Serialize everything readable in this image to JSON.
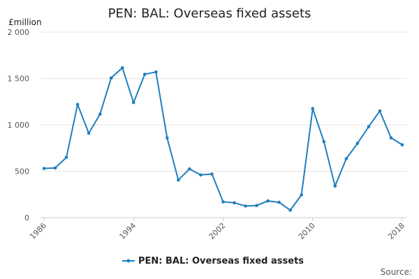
{
  "chart_data": {
    "type": "line",
    "title": "PEN: BAL: Overseas fixed assets",
    "ylabel": "£million",
    "ylim": [
      0,
      2000
    ],
    "yticks": [
      0,
      500,
      1000,
      1500,
      2000
    ],
    "ytick_labels": [
      "0",
      "500",
      "1 000",
      "1 500",
      "2 000"
    ],
    "xlim": [
      1986,
      2018
    ],
    "xticks": [
      1986,
      1994,
      2002,
      2010,
      2018
    ],
    "xtick_labels": [
      "1986",
      "1994",
      "2002",
      "2010",
      "2018"
    ],
    "grid": "horizontal",
    "legend": "bottom-center",
    "color": "#1f7fc0",
    "series": [
      {
        "name": "PEN: BAL: Overseas fixed assets",
        "x": [
          1986,
          1987,
          1988,
          1989,
          1990,
          1991,
          1992,
          1993,
          1994,
          1995,
          1996,
          1997,
          1998,
          1999,
          2000,
          2001,
          2002,
          2003,
          2004,
          2005,
          2006,
          2007,
          2008,
          2009,
          2010,
          2011,
          2012,
          2013,
          2014,
          2015,
          2016,
          2017,
          2018
        ],
        "values": [
          530,
          535,
          650,
          1220,
          910,
          1115,
          1505,
          1615,
          1240,
          1545,
          1570,
          860,
          405,
          525,
          460,
          470,
          170,
          160,
          125,
          130,
          180,
          165,
          80,
          245,
          1175,
          820,
          340,
          635,
          800,
          980,
          1150,
          860,
          785
        ]
      }
    ],
    "source_label": "Source:"
  }
}
